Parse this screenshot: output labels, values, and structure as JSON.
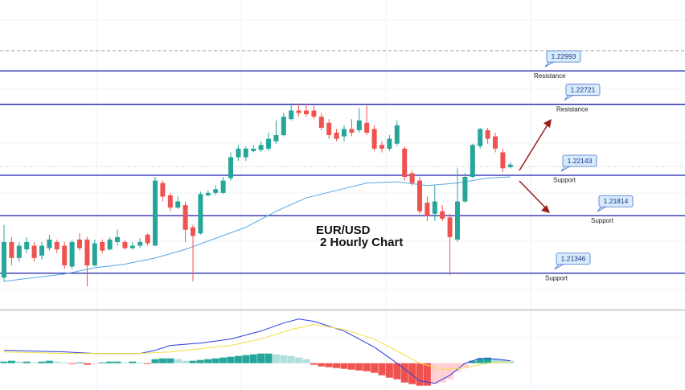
{
  "chart_data": [
    {
      "type": "candlestick",
      "title": "EUR/USD",
      "subtitle": "2 Hourly Chart",
      "open": [
        1.2131,
        1.216,
        1.2147,
        1.2154,
        1.2157,
        1.2149,
        1.2155,
        1.216,
        1.2157,
        1.214,
        1.2162,
        1.2162,
        1.2141,
        1.216,
        1.2154,
        1.216,
        1.216,
        1.2155,
        1.2157,
        1.2166,
        1.2157,
        1.2208,
        1.2198,
        1.2188,
        1.219,
        1.2172,
        1.2167,
        1.2198,
        1.22,
        1.22,
        1.2212,
        1.2229,
        1.2229,
        1.2234,
        1.2235,
        1.2236,
        1.2242,
        1.2247,
        1.226,
        1.2267,
        1.2267,
        1.2267,
        1.2262,
        1.2257,
        1.2249,
        1.2246,
        1.2252,
        1.2251,
        1.2257,
        1.2252,
        1.2239,
        1.2236,
        1.224,
        1.2236,
        1.2216,
        1.221,
        1.2192,
        1.2183,
        1.2185,
        1.218,
        1.2162,
        1.2193,
        1.2213,
        1.2238,
        1.2251,
        1.2246,
        1.2233,
        1.2221
      ],
      "high": [
        1.2174,
        1.2164,
        1.216,
        1.2164,
        1.216,
        1.216,
        1.2166,
        1.2162,
        1.216,
        1.2162,
        1.2167,
        1.2164,
        1.2162,
        1.2162,
        1.2164,
        1.217,
        1.2162,
        1.216,
        1.2163,
        1.2167,
        1.2213,
        1.221,
        1.22,
        1.2197,
        1.2193,
        1.2174,
        1.2201,
        1.2202,
        1.2206,
        1.2213,
        1.2233,
        1.2239,
        1.2238,
        1.2239,
        1.2242,
        1.2249,
        1.2259,
        1.2265,
        1.2273,
        1.2273,
        1.2273,
        1.2271,
        1.2265,
        1.226,
        1.2252,
        1.2255,
        1.226,
        1.2269,
        1.2271,
        1.2255,
        1.2242,
        1.2247,
        1.2259,
        1.2238,
        1.2218,
        1.2213,
        1.2197,
        1.2206,
        1.219,
        1.2183,
        1.222,
        1.2216,
        1.224,
        1.2253,
        1.2253,
        1.2249,
        1.2236,
        1.2225
      ],
      "low": [
        1.2128,
        1.2141,
        1.2144,
        1.2151,
        1.2144,
        1.2146,
        1.2153,
        1.2151,
        1.2138,
        1.2138,
        1.2153,
        1.2124,
        1.214,
        1.2151,
        1.2153,
        1.2157,
        1.2154,
        1.2154,
        1.2155,
        1.2157,
        1.2157,
        1.2193,
        1.2185,
        1.2187,
        1.216,
        1.2128,
        1.2166,
        1.2197,
        1.2198,
        1.2199,
        1.221,
        1.2226,
        1.2226,
        1.2233,
        1.2233,
        1.2234,
        1.224,
        1.2246,
        1.2259,
        1.2262,
        1.2262,
        1.226,
        1.2251,
        1.2244,
        1.2242,
        1.2242,
        1.2246,
        1.2249,
        1.2247,
        1.2234,
        1.2233,
        1.2234,
        1.2238,
        1.221,
        1.2206,
        1.2183,
        1.2177,
        1.2177,
        1.2177,
        1.2133,
        1.216,
        1.2192,
        1.2212,
        1.2236,
        1.224,
        1.2233,
        1.2217,
        1.222
      ],
      "close": [
        1.216,
        1.2147,
        1.2157,
        1.216,
        1.2147,
        1.2157,
        1.2162,
        1.2154,
        1.2141,
        1.216,
        1.2155,
        1.2141,
        1.2159,
        1.2153,
        1.2162,
        1.2164,
        1.2155,
        1.2157,
        1.216,
        1.2159,
        1.221,
        1.2197,
        1.2188,
        1.2193,
        1.217,
        1.2165,
        1.2199,
        1.22,
        1.2203,
        1.221,
        1.2229,
        1.2236,
        1.2236,
        1.2236,
        1.2239,
        1.2244,
        1.2247,
        1.2262,
        1.2267,
        1.2265,
        1.2264,
        1.2262,
        1.2253,
        1.2247,
        1.2244,
        1.2252,
        1.2249,
        1.2259,
        1.2249,
        1.2236,
        1.2236,
        1.2244,
        1.2255,
        1.2213,
        1.2208,
        1.2185,
        1.2181,
        1.2193,
        1.2179,
        1.2164,
        1.2193,
        1.2213,
        1.2239,
        1.2252,
        1.2244,
        1.2236,
        1.222,
        1.2223
      ],
      "up_color": "#26a69a",
      "down_color": "#ef5350",
      "ylim": [
        1.2105,
        1.2357
      ],
      "moving_average": {
        "color": "#5aa7e6",
        "x": [
          0,
          4,
          8,
          12,
          16,
          20,
          24,
          28,
          32,
          36,
          40,
          44,
          48,
          52,
          56,
          60,
          64,
          67
        ],
        "values": [
          1.2128,
          1.2131,
          1.2134,
          1.2139,
          1.2142,
          1.2147,
          1.2154,
          1.2163,
          1.2172,
          1.2185,
          1.2196,
          1.2202,
          1.2208,
          1.2209,
          1.2206,
          1.2208,
          1.2212,
          1.2213
        ]
      },
      "level_color": "#1a1aa6",
      "levels": [
        {
          "value": 1.22993,
          "note": "Resistance"
        },
        {
          "value": 1.22721,
          "note": "Resistance"
        },
        {
          "value": 1.22143,
          "note": "Support"
        },
        {
          "value": 1.21814,
          "note": "Support"
        },
        {
          "value": 1.21346,
          "note": "Support"
        }
      ]
    },
    {
      "type": "macd",
      "ylim": [
        -0.001,
        0.002
      ],
      "histogram": [
        6e-05,
        9e-05,
        6e-05,
        6e-05,
        3e-05,
        6e-05,
        9e-05,
        6e-05,
        3e-05,
        -3e-05,
        3e-05,
        -6e-05,
        -3e-05,
        3e-05,
        6e-05,
        6e-05,
        3e-05,
        6e-05,
        3e-05,
        -3e-05,
        0.00015,
        0.00018,
        0.00018,
        0.00015,
        9e-05,
        9e-05,
        0.00012,
        0.00015,
        0.00018,
        0.00021,
        0.00024,
        0.00027,
        0.0003,
        0.00033,
        0.00036,
        0.00036,
        0.00033,
        0.0003,
        0.00027,
        0.00021,
        0.00015,
        -6e-05,
        -0.00012,
        -0.00015,
        -0.00018,
        -0.00021,
        -0.00024,
        -0.00027,
        -0.0003,
        -0.00036,
        -0.00045,
        -0.00054,
        -0.0006,
        -0.00072,
        -0.00078,
        -0.00084,
        -0.00084,
        -0.00078,
        -0.00072,
        -0.0006,
        -0.0003,
        -0.00015,
        9e-05,
        0.00018,
        0.00021,
        0.00018,
        0.00015,
        9e-05
      ],
      "up_colors": [
        "#26a69a",
        "#b2dfdb"
      ],
      "down_colors": [
        "#ef5350",
        "#ffcdd2"
      ],
      "series": [
        {
          "color": "#2a3be0",
          "x": [
            0,
            8,
            12,
            18,
            20,
            22,
            26,
            30,
            34,
            37,
            39,
            41,
            45,
            49,
            52,
            55,
            57,
            59,
            61,
            63,
            65,
            67
          ],
          "values": [
            0.00048,
            0.00042,
            0.00036,
            0.00036,
            0.00048,
            0.00066,
            0.00075,
            0.0009,
            0.0012,
            0.0015,
            0.00165,
            0.00156,
            0.0012,
            0.0006,
            0,
            -0.00066,
            -0.00075,
            -0.00045,
            0,
            0.00018,
            0.00015,
            9e-05
          ]
        },
        {
          "color": "#f0e040",
          "x": [
            0,
            8,
            18,
            22,
            26,
            30,
            34,
            38,
            41,
            45,
            49,
            52,
            55,
            58,
            61,
            64,
            67
          ],
          "values": [
            0.00042,
            0.00036,
            0.00036,
            0.00042,
            0.00054,
            0.00066,
            0.0009,
            0.00126,
            0.00144,
            0.00126,
            0.0009,
            0.00045,
            0,
            -0.00024,
            -0.00018,
            0,
            6e-05
          ]
        }
      ]
    }
  ]
}
